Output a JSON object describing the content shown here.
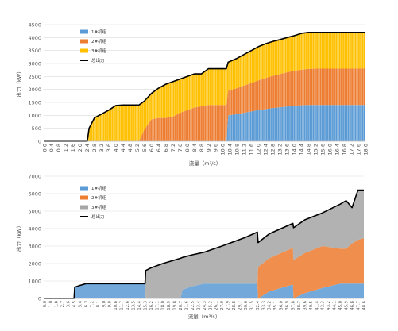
{
  "chart_data": [
    {
      "type": "area",
      "stacked": true,
      "xlabel": "流量（m³/s）",
      "ylabel": "出力（kW）",
      "ylim": [
        0,
        4500
      ],
      "yticks": [
        0,
        500,
        1000,
        1500,
        2000,
        2500,
        3000,
        3500,
        4000,
        4500
      ],
      "xlim": [
        0,
        18
      ],
      "xticks": [
        "0.0",
        "0.4",
        "0.8",
        "1.2",
        "1.6",
        "2.0",
        "2.4",
        "2.8",
        "3.2",
        "3.6",
        "4.0",
        "4.4",
        "4.8",
        "5.2",
        "5.6",
        "6.0",
        "6.4",
        "6.8",
        "7.2",
        "7.6",
        "8.0",
        "8.4",
        "8.8",
        "9.2",
        "9.6",
        "10.0",
        "10.4",
        "10.8",
        "11.2",
        "11.6",
        "12.0",
        "12.4",
        "12.8",
        "13.2",
        "13.6",
        "14.0",
        "14.4",
        "14.8",
        "15.2",
        "15.6",
        "16.0",
        "16.4",
        "16.8",
        "17.2",
        "17.6",
        "18.0"
      ],
      "grid": "horizontal",
      "legend": "top-left",
      "x": [
        0,
        2.4,
        2.5,
        2.8,
        3.2,
        3.6,
        4.0,
        4.4,
        4.8,
        5.2,
        5.3,
        5.6,
        6.0,
        6.4,
        6.8,
        7.2,
        7.6,
        8.0,
        8.4,
        8.8,
        9.2,
        9.6,
        10.0,
        10.2,
        10.3,
        10.8,
        11.2,
        11.6,
        12.0,
        12.4,
        12.8,
        13.2,
        13.6,
        14.0,
        14.4,
        14.8,
        15.2,
        15.6,
        16.0,
        16.4,
        16.8,
        17.2,
        17.6,
        18.0
      ],
      "series": [
        {
          "name": "1#机组",
          "color": "#5b9bd5",
          "values": [
            0,
            0,
            0,
            0,
            0,
            0,
            0,
            0,
            0,
            0,
            0,
            0,
            0,
            0,
            0,
            0,
            0,
            0,
            0,
            0,
            0,
            0,
            0,
            0,
            1000,
            1050,
            1100,
            1150,
            1200,
            1240,
            1280,
            1310,
            1340,
            1370,
            1390,
            1400,
            1400,
            1400,
            1400,
            1400,
            1400,
            1400,
            1400,
            1400
          ]
        },
        {
          "name": "2#机组",
          "color": "#ed7d31",
          "values": [
            0,
            0,
            0,
            0,
            0,
            0,
            0,
            0,
            0,
            0,
            0,
            450,
            850,
            900,
            900,
            950,
            1100,
            1200,
            1300,
            1350,
            1400,
            1400,
            1400,
            1400,
            950,
            1000,
            1050,
            1100,
            1150,
            1200,
            1240,
            1280,
            1320,
            1350,
            1370,
            1390,
            1400,
            1400,
            1400,
            1400,
            1400,
            1400,
            1400,
            1400
          ]
        },
        {
          "name": "3#机组",
          "color": "#ffc000",
          "values": [
            0,
            0,
            500,
            900,
            1050,
            1200,
            1380,
            1400,
            1400,
            1400,
            1400,
            1100,
            1000,
            1150,
            1300,
            1350,
            1300,
            1300,
            1300,
            1250,
            1400,
            1400,
            1400,
            1400,
            1100,
            1150,
            1200,
            1250,
            1300,
            1320,
            1330,
            1330,
            1340,
            1350,
            1400,
            1410,
            1400,
            1400,
            1400,
            1400,
            1400,
            1400,
            1400,
            1400
          ]
        }
      ],
      "total": {
        "name": "总出力",
        "color": "#000000",
        "values": [
          0,
          0,
          500,
          900,
          1050,
          1200,
          1380,
          1400,
          1400,
          1400,
          1400,
          1550,
          1850,
          2050,
          2200,
          2300,
          2400,
          2500,
          2600,
          2600,
          2800,
          2800,
          2800,
          2800,
          3050,
          3200,
          3350,
          3500,
          3650,
          3760,
          3850,
          3920,
          4000,
          4070,
          4160,
          4200,
          4200,
          4200,
          4200,
          4200,
          4200,
          4200,
          4200,
          4200
        ]
      }
    },
    {
      "type": "area",
      "stacked": true,
      "xlabel": "流量（m³/s）",
      "ylabel": "出力（kW）",
      "ylim": [
        0,
        7000
      ],
      "yticks": [
        0,
        1000,
        2000,
        3000,
        4000,
        5000,
        6000,
        7000
      ],
      "xlim": [
        0,
        48.6
      ],
      "xticks": [
        "0.0",
        "1.0",
        "1.8",
        "2.7",
        "3.6",
        "4.5",
        "5.4",
        "6.3",
        "7.2",
        "8.1",
        "9.0",
        "9.9",
        "10.8",
        "11.7",
        "12.6",
        "13.5",
        "14.4",
        "15.3",
        "16.2",
        "17.1",
        "18.0",
        "18.9",
        "19.8",
        "20.7",
        "21.6",
        "22.5",
        "23.4",
        "24.3",
        "25.2",
        "26.1",
        "27.0",
        "27.9",
        "28.8",
        "29.7",
        "30.6",
        "31.5",
        "32.4",
        "33.3",
        "34.2",
        "35.1",
        "36.0",
        "36.9",
        "37.8",
        "38.7",
        "39.6",
        "40.5",
        "41.4",
        "42.3",
        "43.2",
        "44.1",
        "45.0",
        "45.9",
        "46.8",
        "47.7",
        "48.6"
      ],
      "grid": "horizontal",
      "legend": "top-left",
      "x": [
        0,
        4.5,
        4.6,
        5.4,
        6.3,
        7.2,
        15.3,
        15.4,
        16.2,
        18.0,
        20.7,
        21.0,
        22.5,
        24.3,
        27.0,
        30.6,
        32.4,
        32.5,
        34.2,
        36.0,
        37.8,
        37.9,
        39.6,
        42.3,
        45.0,
        45.9,
        46.8,
        47.7,
        48.6
      ],
      "series": [
        {
          "name": "1#机组",
          "color": "#5b9bd5",
          "values": [
            0,
            0,
            650,
            750,
            850,
            850,
            850,
            0,
            0,
            0,
            0,
            500,
            700,
            850,
            850,
            850,
            850,
            0,
            400,
            600,
            800,
            0,
            300,
            600,
            850,
            850,
            850,
            850,
            850
          ]
        },
        {
          "name": "2#机组",
          "color": "#ed7d31",
          "values": [
            0,
            0,
            0,
            0,
            0,
            0,
            0,
            0,
            0,
            0,
            0,
            0,
            0,
            0,
            0,
            0,
            0,
            1800,
            1900,
            2000,
            2100,
            2200,
            2300,
            2400,
            2000,
            2000,
            2300,
            2500,
            2600
          ]
        },
        {
          "name": "3#机组",
          "color": "#a6a6a6",
          "values": [
            0,
            0,
            0,
            0,
            0,
            0,
            0,
            1600,
            1750,
            2000,
            2300,
            1850,
            1800,
            1800,
            2150,
            2650,
            2950,
            1400,
            1400,
            1400,
            1400,
            1850,
            1900,
            1900,
            2550,
            2750,
            2050,
            2850,
            2750
          ]
        }
      ],
      "total": {
        "name": "总出力",
        "color": "#000000",
        "values": [
          0,
          0,
          650,
          750,
          850,
          850,
          850,
          1600,
          1750,
          2000,
          2300,
          2350,
          2500,
          2650,
          3000,
          3500,
          3800,
          3200,
          3700,
          4000,
          4300,
          4050,
          4500,
          4900,
          5400,
          5600,
          5200,
          6200,
          6200
        ]
      }
    }
  ]
}
